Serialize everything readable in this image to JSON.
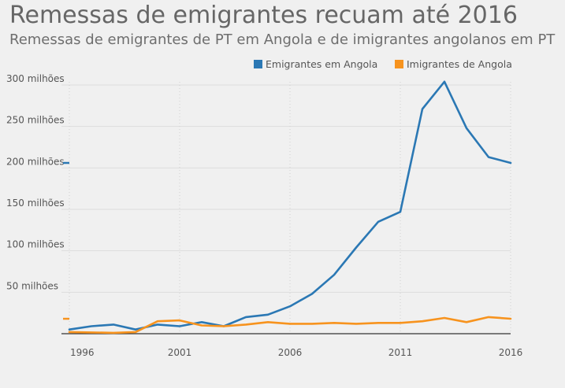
{
  "header": {
    "title": "Remessas de emigrantes recuam até 2016",
    "subtitle": "Remessas de emigrantes de PT em Angola e de imigrantes angolanos em PT"
  },
  "legend": [
    {
      "label": "Emigrantes em Angola",
      "color": "#2b78b4"
    },
    {
      "label": "Imigrantes de Angola",
      "color": "#f7931e"
    }
  ],
  "chart_data": {
    "type": "line",
    "title": "Remessas de emigrantes recuam até 2016",
    "subtitle": "Remessas de emigrantes de PT em Angola e de imigrantes angolanos em PT",
    "xlabel": "",
    "ylabel": "",
    "x": [
      1996,
      1997,
      1998,
      1999,
      2000,
      2001,
      2002,
      2003,
      2004,
      2005,
      2006,
      2007,
      2008,
      2009,
      2010,
      2011,
      2012,
      2013,
      2014,
      2015,
      2016
    ],
    "series": [
      {
        "name": "Emigrantes em Angola",
        "color": "#2b78b4",
        "values": [
          5,
          9,
          11,
          5,
          11,
          9,
          14,
          9,
          20,
          23,
          33,
          48,
          71,
          104,
          135,
          147,
          271,
          304,
          248,
          213,
          206
        ]
      },
      {
        "name": "Imigrantes de Angola",
        "color": "#f7931e",
        "values": [
          2,
          1.5,
          1,
          2,
          15,
          16,
          10,
          9,
          11,
          14,
          12,
          12,
          13,
          12,
          13,
          13,
          15,
          19,
          14,
          20,
          18
        ]
      }
    ],
    "xlim": [
      1996,
      2016
    ],
    "ylim": [
      0,
      310
    ],
    "yticks": [
      50,
      100,
      150,
      200,
      250,
      300
    ],
    "ytick_labels": [
      "50 milhões",
      "100 milhões",
      "150 milhões",
      "200 milhões",
      "250 milhões",
      "300 milhões"
    ],
    "xticks": [
      1996,
      2001,
      2006,
      2011,
      2016
    ],
    "xtick_labels": [
      "1996",
      "2001",
      "2006",
      "2011",
      "2016"
    ],
    "grid": true,
    "legend_position": "top-right"
  }
}
